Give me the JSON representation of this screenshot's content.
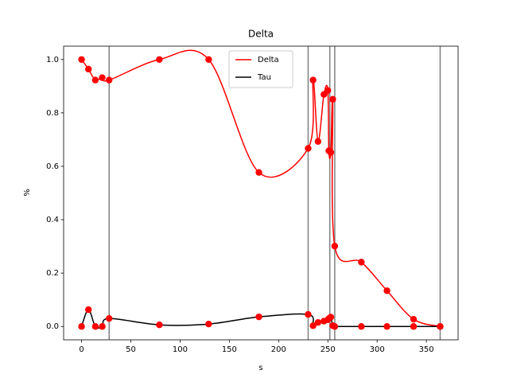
{
  "chart_data": {
    "type": "line",
    "title": "Delta",
    "xlabel": "s",
    "ylabel": "%",
    "x": [
      0,
      7,
      14,
      21,
      28,
      79,
      129,
      180,
      230,
      235,
      240,
      246,
      250,
      251,
      253,
      255,
      257,
      284,
      310,
      337,
      364
    ],
    "series": [
      {
        "name": "Delta",
        "color": "#ff0000",
        "marker_color": "#ff0000",
        "values": [
          1,
          0.964,
          0.923,
          0.932,
          0.923,
          1,
          1,
          0.577,
          0.667,
          0.923,
          0.693,
          0.869,
          0.884,
          0.658,
          0.652,
          0.851,
          0.301,
          0.241,
          0.134,
          0.027,
          0
        ]
      },
      {
        "name": "Tau",
        "color": "#000000",
        "marker_color": "#ff0000",
        "values": [
          0,
          0.063,
          0,
          0,
          0.03,
          0.006,
          0.009,
          0.036,
          0.045,
          0.003,
          0.015,
          0.02,
          0.025,
          0.03,
          0.035,
          0.003,
          0,
          0,
          0,
          0,
          0
        ]
      }
    ],
    "vlines": [
      28,
      230,
      252,
      257,
      364
    ],
    "vline_color": "#808080",
    "xlim": [
      -18.2,
      382.2
    ],
    "ylim": [
      -0.05,
      1.05
    ],
    "xticks": [
      0,
      50,
      100,
      150,
      200,
      250,
      300,
      350
    ],
    "yticks": [
      {
        "value": 0,
        "label": "0.0"
      },
      {
        "value": 0.2,
        "label": "0.2"
      },
      {
        "value": 0.4,
        "label": "0.4"
      },
      {
        "value": 0.6,
        "label": "0.6"
      },
      {
        "value": 0.8,
        "label": "0.8"
      },
      {
        "value": 1,
        "label": "1.0"
      }
    ],
    "legend": "upper center"
  }
}
